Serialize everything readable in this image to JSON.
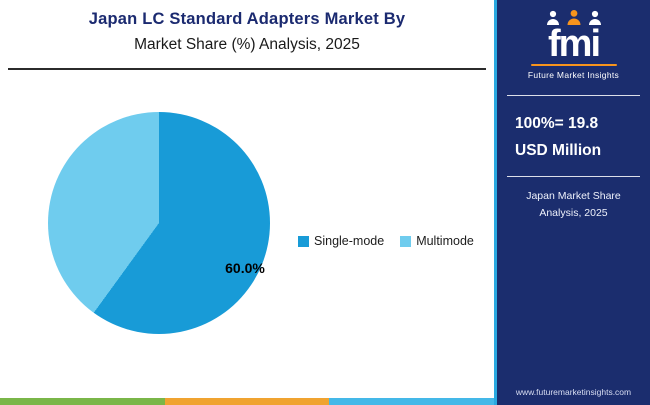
{
  "header": {
    "title_line1": "Japan LC Standard Adapters Market By",
    "title_line2": "Market Share (%) Analysis, 2025"
  },
  "chart_data": {
    "type": "pie",
    "title": "Japan LC Standard Adapters Market By Market Share (%) Analysis, 2025",
    "start_angle": "top, clockwise",
    "slices": [
      {
        "label": "Single-mode",
        "value": 60.0,
        "color": "#189bd7"
      },
      {
        "label": "Multimode",
        "value": 40.0,
        "color": "#6fccee"
      }
    ],
    "data_label": "60.0%",
    "legend_position": "right"
  },
  "sidebar": {
    "logo_text": "fmi",
    "brand": "Future Market Insights",
    "stat_line1": "100%= 19.8",
    "stat_line2": "USD Million",
    "caption_line1": "Japan Market Share",
    "caption_line2": "Analysis, 2025",
    "website": "www.futuremarketinsights.com",
    "background": "#1b2d6e",
    "accent_line": "#2aa9e0"
  },
  "footer": {
    "colors": [
      "#7ab648",
      "#f0a330",
      "#44b8e8"
    ]
  }
}
